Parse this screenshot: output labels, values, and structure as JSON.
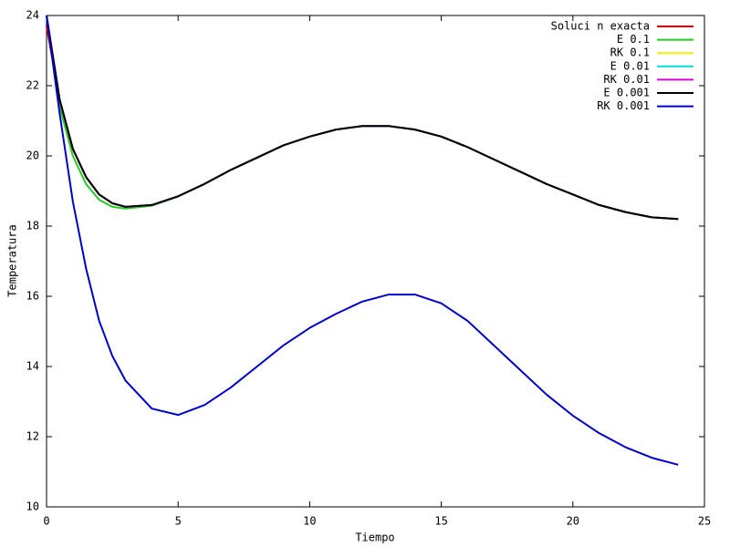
{
  "chart_data": {
    "type": "line",
    "xlabel": "Tiempo",
    "ylabel": "Temperatura",
    "x": [
      0,
      0.5,
      1,
      1.5,
      2,
      2.5,
      3,
      4,
      5,
      6,
      7,
      8,
      9,
      10,
      11,
      12,
      13,
      14,
      15,
      16,
      17,
      18,
      19,
      20,
      21,
      22,
      23,
      24
    ],
    "series": [
      {
        "name": "Soluci n exacta",
        "color": "#cc0000",
        "values": [
          23.7,
          21.6,
          20.2,
          19.4,
          18.9,
          18.65,
          18.55,
          18.6,
          18.85,
          19.2,
          19.6,
          19.95,
          20.3,
          20.55,
          20.75,
          20.85,
          20.85,
          20.75,
          20.55,
          20.25,
          19.9,
          19.55,
          19.2,
          18.9,
          18.6,
          18.4,
          18.25,
          18.2
        ]
      },
      {
        "name": "E 0.1",
        "color": "#22cc22",
        "values": [
          24,
          21.4,
          20.0,
          19.2,
          18.75,
          18.55,
          18.5,
          18.58,
          18.84,
          19.2,
          19.6,
          19.95,
          20.3,
          20.55,
          20.75,
          20.85,
          20.85,
          20.75,
          20.55,
          20.25,
          19.9,
          19.55,
          19.2,
          18.9,
          18.6,
          18.4,
          18.25,
          18.2
        ]
      },
      {
        "name": "RK 0.1",
        "color": "#eeee00",
        "values": [
          24,
          21.6,
          20.2,
          19.4,
          18.9,
          18.65,
          18.55,
          18.6,
          18.85,
          19.2,
          19.6,
          19.95,
          20.3,
          20.55,
          20.75,
          20.85,
          20.85,
          20.75,
          20.55,
          20.25,
          19.9,
          19.55,
          19.2,
          18.9,
          18.6,
          18.4,
          18.25,
          18.2
        ]
      },
      {
        "name": "E 0.01",
        "color": "#00dddd",
        "values": [
          24,
          21.6,
          20.2,
          19.4,
          18.9,
          18.65,
          18.55,
          18.6,
          18.85,
          19.2,
          19.6,
          19.95,
          20.3,
          20.55,
          20.75,
          20.85,
          20.85,
          20.75,
          20.55,
          20.25,
          19.9,
          19.55,
          19.2,
          18.9,
          18.6,
          18.4,
          18.25,
          18.2
        ]
      },
      {
        "name": "RK 0.01",
        "color": "#dd00dd",
        "values": [
          24,
          21.6,
          20.2,
          19.4,
          18.9,
          18.65,
          18.55,
          18.6,
          18.85,
          19.2,
          19.6,
          19.95,
          20.3,
          20.55,
          20.75,
          20.85,
          20.85,
          20.75,
          20.55,
          20.25,
          19.9,
          19.55,
          19.2,
          18.9,
          18.6,
          18.4,
          18.25,
          18.2
        ]
      },
      {
        "name": "E 0.001",
        "color": "#000000",
        "values": [
          24,
          21.6,
          20.2,
          19.4,
          18.9,
          18.65,
          18.55,
          18.6,
          18.85,
          19.2,
          19.6,
          19.95,
          20.3,
          20.55,
          20.75,
          20.85,
          20.85,
          20.75,
          20.55,
          20.25,
          19.9,
          19.55,
          19.2,
          18.9,
          18.6,
          18.4,
          18.25,
          18.2
        ]
      },
      {
        "name": "RK 0.001",
        "color": "#0000cc",
        "values": [
          24,
          21.2,
          18.7,
          16.8,
          15.3,
          14.3,
          13.6,
          12.8,
          12.62,
          12.9,
          13.4,
          14.0,
          14.6,
          15.1,
          15.5,
          15.85,
          16.05,
          16.05,
          15.8,
          15.3,
          14.6,
          13.9,
          13.2,
          12.6,
          12.1,
          11.7,
          11.4,
          11.2
        ]
      }
    ],
    "xlim": [
      0,
      25
    ],
    "xticks": [
      0,
      5,
      10,
      15,
      20,
      25
    ],
    "ylim": [
      10,
      24
    ],
    "yticks": [
      10,
      12,
      14,
      16,
      18,
      20,
      22,
      24
    ],
    "legend": "upper right"
  }
}
